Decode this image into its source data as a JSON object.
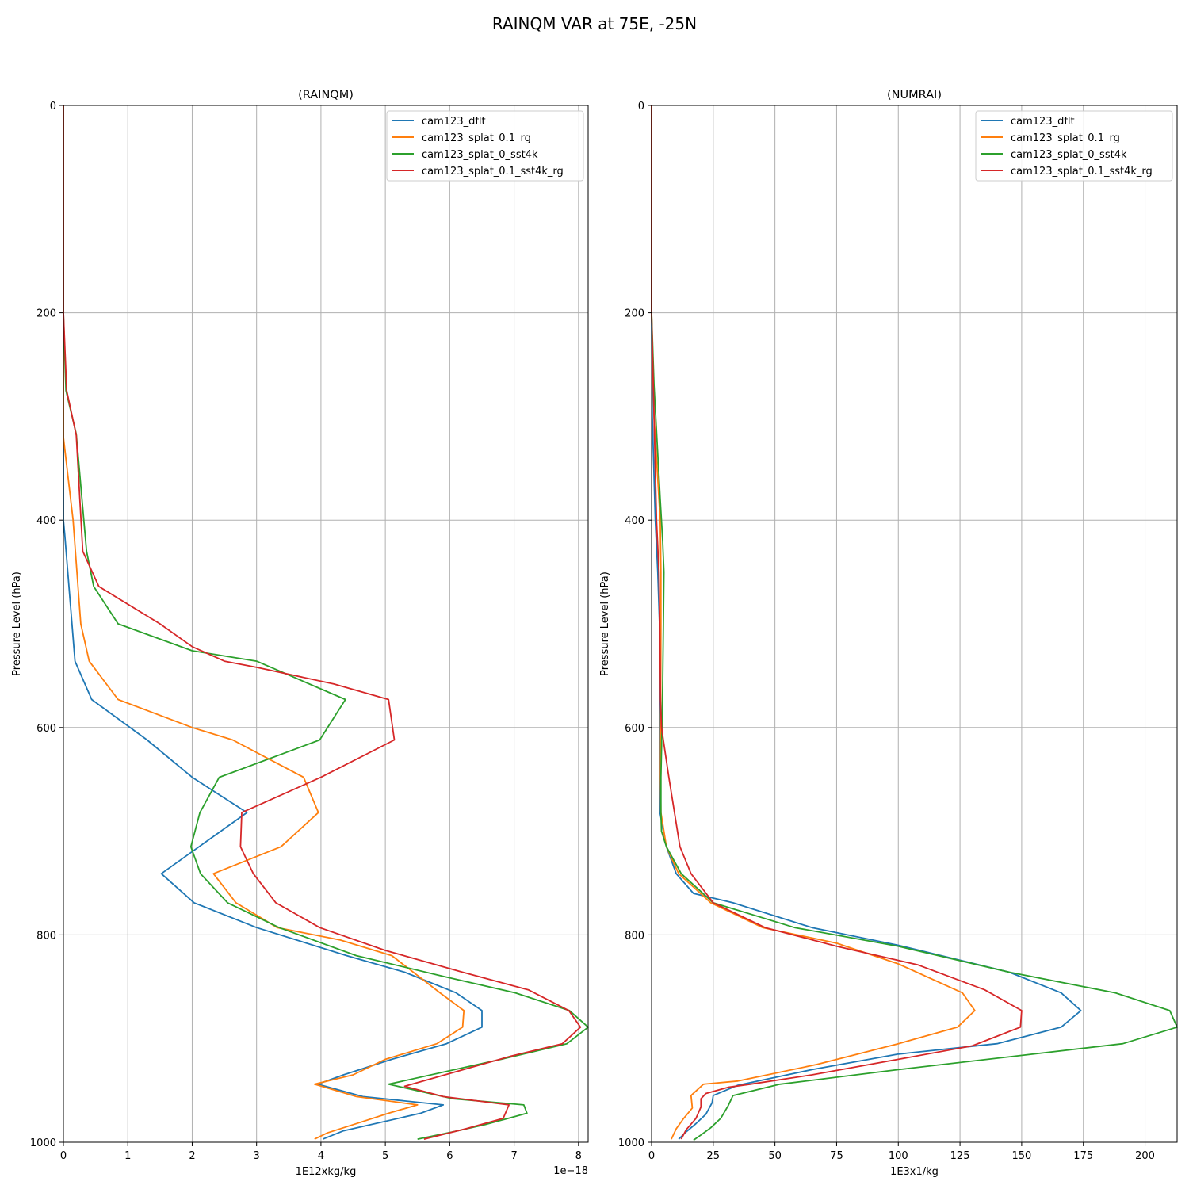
{
  "title": "RAINQM VAR at 75E, -25N",
  "colors": {
    "cam123_dflt": "#1f77b4",
    "cam123_splat_0.1_rg": "#ff7f0e",
    "cam123_splat_0_sst4k": "#2ca02c",
    "cam123_splat_0.1_sst4k_rg": "#d62728"
  },
  "chart_data": [
    {
      "type": "line",
      "title": "(RAINQM)",
      "xlabel": "1E12xkg/kg",
      "ylabel": "Pressure Level (hPa)",
      "x_offset_label": "1e−18",
      "xlim": [
        0,
        8.15
      ],
      "ylim": [
        1000,
        0
      ],
      "y_inverted": true,
      "xticks": [
        0,
        1,
        2,
        3,
        4,
        5,
        6,
        7,
        8
      ],
      "yticks": [
        0,
        200,
        400,
        600,
        800,
        1000
      ],
      "grid": true,
      "legend_position": "upper right",
      "series": [
        {
          "name": "cam123_dflt",
          "x": [
            0,
            0,
            0,
            0,
            0.02,
            0.18,
            0.44,
            1.3,
            2.0,
            2.85,
            1.52,
            2.03,
            3.0,
            4.4,
            5.3,
            6.1,
            6.5,
            6.5,
            5.95,
            5.1,
            4.35,
            3.95,
            4.65,
            5.9,
            5.55,
            4.35,
            4.03
          ],
          "y": [
            0,
            200,
            350,
            400,
            413,
            536,
            573,
            612,
            648,
            682,
            741,
            769,
            793,
            820,
            836,
            856,
            873,
            889,
            905,
            920,
            935,
            944,
            956,
            964,
            972,
            989,
            997
          ]
        },
        {
          "name": "cam123_splat_0.1_rg",
          "x": [
            0,
            0,
            0,
            0.15,
            0.27,
            0.4,
            0.85,
            2.0,
            2.63,
            3.73,
            3.96,
            3.38,
            2.33,
            2.68,
            3.32,
            4.3,
            5.1,
            5.85,
            6.22,
            6.2,
            5.8,
            5.0,
            4.5,
            3.9,
            4.55,
            5.5,
            5.05,
            4.5,
            4.1,
            3.9
          ],
          "y": [
            0,
            200,
            320,
            400,
            500,
            536,
            573,
            600,
            612,
            648,
            682,
            715,
            741,
            769,
            793,
            805,
            820,
            856,
            873,
            889,
            905,
            920,
            935,
            944,
            956,
            964,
            972,
            983,
            991,
            997
          ]
        },
        {
          "name": "cam123_splat_0_sst4k",
          "x": [
            0,
            0,
            0.04,
            0.2,
            0.36,
            0.47,
            0.85,
            2.0,
            3.0,
            4.38,
            3.98,
            2.42,
            2.12,
            1.98,
            2.13,
            2.55,
            3.35,
            4.55,
            5.9,
            7.02,
            7.86,
            8.15,
            7.82,
            6.8,
            5.05,
            6.05,
            7.15,
            7.2,
            6.55,
            6.05,
            5.5
          ],
          "y": [
            0,
            200,
            275,
            317,
            430,
            464,
            500,
            526,
            536,
            573,
            612,
            648,
            682,
            715,
            741,
            769,
            793,
            820,
            840,
            856,
            873,
            889,
            905,
            920,
            944,
            958,
            964,
            972,
            983,
            990,
            997
          ]
        },
        {
          "name": "cam123_splat_0.1_sst4k_rg",
          "x": [
            0,
            0,
            0.05,
            0.2,
            0.3,
            0.55,
            1.5,
            2.0,
            2.5,
            3.0,
            4.2,
            5.05,
            5.14,
            4.0,
            2.77,
            2.75,
            2.95,
            3.3,
            3.98,
            5.0,
            6.2,
            7.22,
            7.85,
            8.03,
            7.75,
            6.95,
            5.3,
            5.9,
            6.92,
            6.83,
            6.25,
            5.6
          ],
          "y": [
            0,
            200,
            275,
            318,
            430,
            464,
            500,
            522,
            536,
            542,
            558,
            573,
            612,
            648,
            682,
            715,
            741,
            769,
            793,
            815,
            836,
            853,
            873,
            889,
            905,
            917,
            946,
            956,
            964,
            977,
            987,
            997
          ]
        }
      ]
    },
    {
      "type": "line",
      "title": "(NUMRAI)",
      "xlabel": "1E3x1/kg",
      "ylabel": "Pressure Level (hPa)",
      "xlim": [
        0,
        213
      ],
      "ylim": [
        1000,
        0
      ],
      "y_inverted": true,
      "xticks": [
        0,
        25,
        50,
        75,
        100,
        125,
        150,
        175,
        200
      ],
      "yticks": [
        0,
        200,
        400,
        600,
        800,
        1000
      ],
      "grid": true,
      "legend_position": "upper right",
      "series": [
        {
          "name": "cam123_dflt",
          "x": [
            0,
            0,
            0.3,
            1.5,
            2.5,
            3.2,
            3.5,
            3.3,
            3.2,
            3.4,
            6.0,
            10.0,
            17.0,
            33.0,
            65.0,
            100.0,
            145.0,
            166.0,
            174.0,
            166.0,
            140.0,
            100.0,
            65.0,
            35.0,
            25.0,
            24.5,
            22.0,
            18.0,
            14.0,
            11.0
          ],
          "y": [
            0,
            200,
            300,
            400,
            450,
            500,
            560,
            600,
            648,
            682,
            715,
            741,
            760,
            769,
            793,
            810,
            836,
            856,
            873,
            889,
            905,
            915,
            930,
            945,
            955,
            962,
            973,
            982,
            990,
            997
          ]
        },
        {
          "name": "cam123_splat_0.1_rg",
          "x": [
            0,
            0,
            1.0,
            3.5,
            3.8,
            3.8,
            3.7,
            3.7,
            3.6,
            3.8,
            6.0,
            11.0,
            24.0,
            45.0,
            75.0,
            100.0,
            126.0,
            131.0,
            124.0,
            100.0,
            67.0,
            35.0,
            21.0,
            16.0,
            16.5,
            13.0,
            10.0,
            8.0
          ],
          "y": [
            0,
            200,
            300,
            400,
            450,
            500,
            560,
            600,
            648,
            682,
            715,
            741,
            769,
            793,
            808,
            828,
            856,
            873,
            889,
            905,
            925,
            941,
            944,
            955,
            967,
            977,
            987,
            997
          ]
        },
        {
          "name": "cam123_splat_0_sst4k",
          "x": [
            0,
            0,
            1.0,
            3.5,
            4.5,
            5.0,
            4.8,
            4.5,
            4.2,
            3.8,
            3.8,
            4.0,
            6.0,
            12.0,
            25.0,
            58.0,
            100.0,
            145.0,
            188.0,
            210.0,
            213.0,
            191.0,
            100.0,
            52.0,
            33.0,
            31.0,
            28.0,
            24.0,
            20.0,
            17.0
          ],
          "y": [
            0,
            200,
            270,
            380,
            420,
            450,
            500,
            560,
            600,
            648,
            682,
            700,
            715,
            741,
            769,
            793,
            811,
            836,
            856,
            873,
            889,
            905,
            930,
            944,
            955,
            965,
            977,
            986,
            993,
            998
          ]
        },
        {
          "name": "cam123_splat_0.1_sst4k_rg",
          "x": [
            0,
            0,
            1.0,
            2.0,
            3.0,
            3.3,
            3.5,
            3.6,
            4.0,
            7.0,
            11.5,
            16.0,
            25.0,
            46.0,
            75.0,
            108.0,
            135.0,
            150.0,
            149.5,
            130.0,
            100.0,
            65.0,
            40.0,
            31.0,
            22.0,
            20.0,
            20.0,
            18.0,
            14.0,
            12.0
          ],
          "y": [
            0,
            200,
            300,
            400,
            450,
            500,
            540,
            573,
            600,
            648,
            715,
            741,
            769,
            793,
            811,
            829,
            853,
            873,
            889,
            907,
            920,
            935,
            944,
            947,
            953,
            958,
            966,
            977,
            988,
            997
          ]
        }
      ]
    }
  ]
}
